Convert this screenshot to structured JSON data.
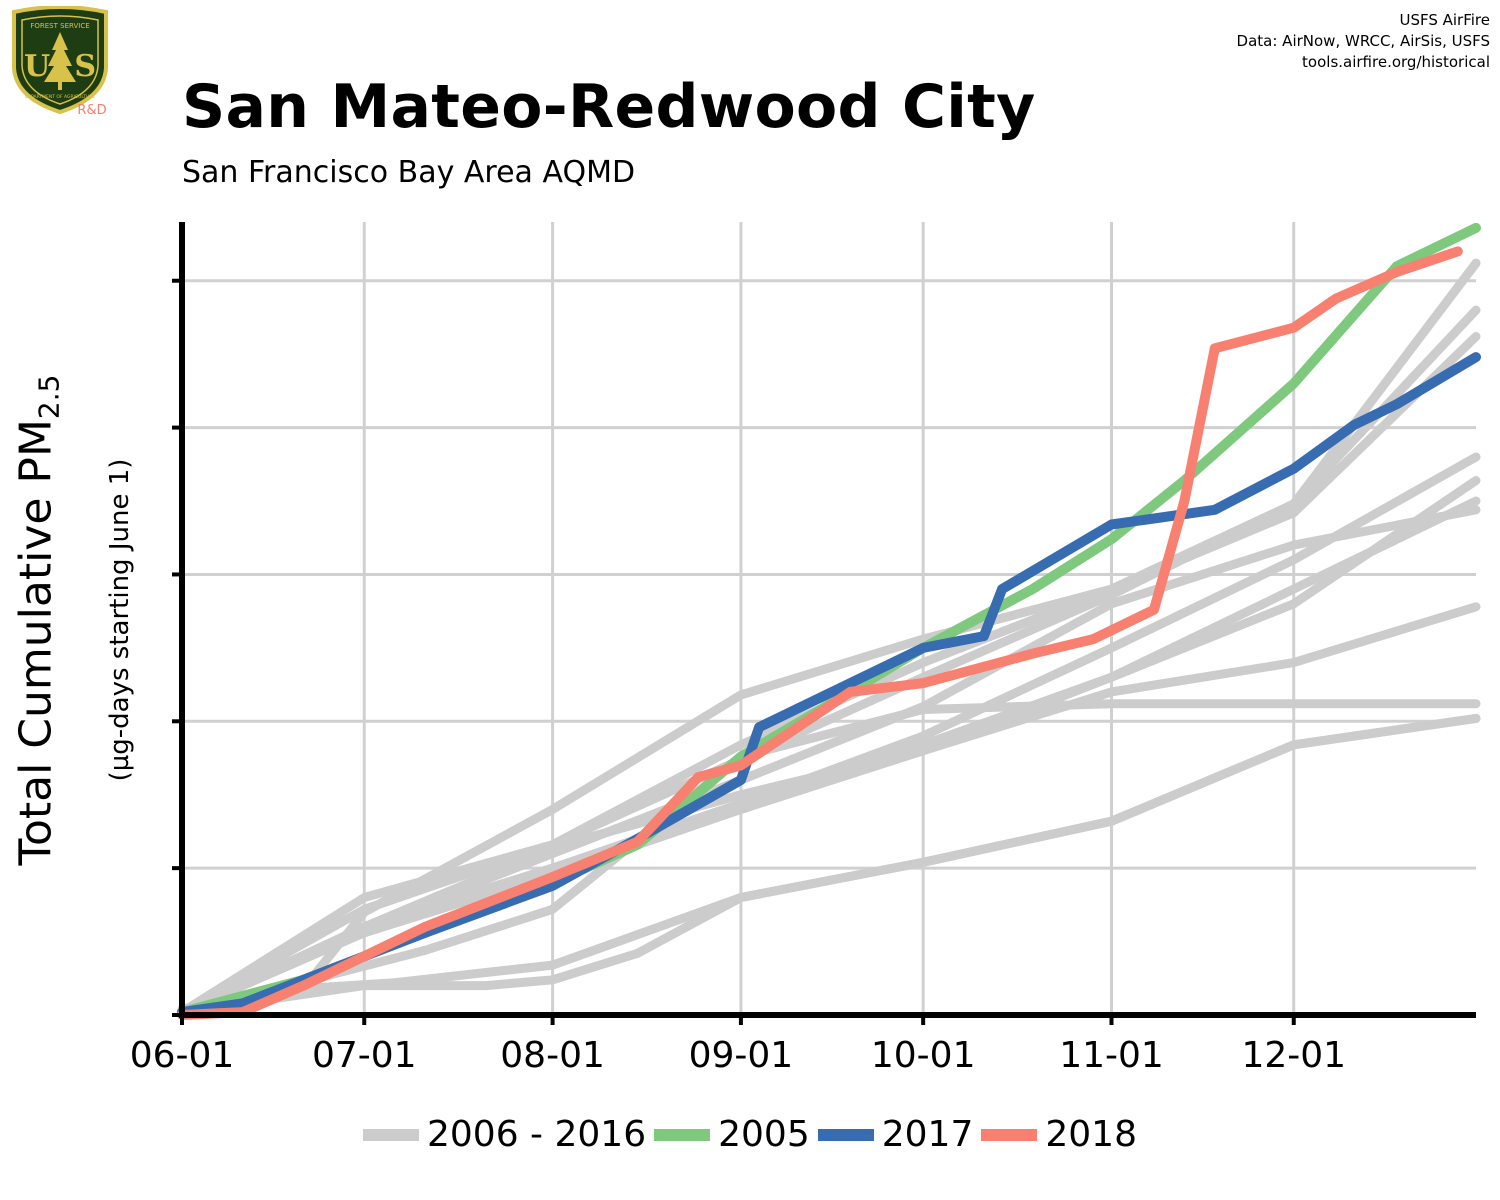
{
  "header": {
    "credits": [
      "USFS AirFire",
      "Data: AirNow, WRCC, AirSis, USFS",
      "tools.airfire.org/historical"
    ],
    "logo": {
      "top_text": "FOREST SERVICE",
      "letters": "U S",
      "bottom_text": "DEPARTMENT OF AGRICULTURE",
      "tag": "R&D"
    }
  },
  "chart_data": {
    "type": "line",
    "title": "San Mateo-Redwood City",
    "subtitle": "San Francisco Bay Area AQMD",
    "ylabel_main": "Total Cumulative PM",
    "ylabel_sub_script": "2.5",
    "ylabel_secondary": "(µg-days starting June 1)",
    "xlabel": "",
    "x_tick_labels": [
      "06-01",
      "07-01",
      "08-01",
      "09-01",
      "10-01",
      "11-01",
      "12-01"
    ],
    "x_tick_days": [
      0,
      30,
      61,
      92,
      122,
      153,
      183
    ],
    "xlim": [
      0,
      213
    ],
    "ylim": [
      0,
      270
    ],
    "y_ticks": [
      0,
      50,
      100,
      150,
      200,
      250
    ],
    "y_tick_labels_shown": false,
    "grid": true,
    "legend_position": "bottom",
    "colors": {
      "history": "#CCCCCC",
      "y2005": "#7FC97F",
      "y2017": "#386CB0",
      "y2018": "#F88070"
    },
    "legend": [
      {
        "label": "2006 - 2016",
        "color": "#CCCCCC"
      },
      {
        "label": "2005",
        "color": "#7FC97F"
      },
      {
        "label": "2017",
        "color": "#386CB0"
      },
      {
        "label": "2018",
        "color": "#F88070"
      }
    ],
    "series": [
      {
        "name": "2006 - 2016",
        "color": "#CCCCCC",
        "points": [
          [
            0,
            1
          ],
          [
            15,
            8
          ],
          [
            25,
            14
          ],
          [
            40,
            22
          ],
          [
            61,
            36
          ],
          [
            92,
            88
          ],
          [
            122,
            104
          ],
          [
            153,
            106
          ],
          [
            183,
            106
          ],
          [
            213,
            106
          ]
        ]
      },
      {
        "name": "2006 - 2016",
        "color": "#CCCCCC",
        "points": [
          [
            0,
            2
          ],
          [
            20,
            9
          ],
          [
            35,
            11
          ],
          [
            61,
            17
          ],
          [
            92,
            40
          ],
          [
            122,
            52
          ],
          [
            153,
            66
          ],
          [
            183,
            92
          ],
          [
            213,
            101
          ]
        ]
      },
      {
        "name": "2006 - 2016",
        "color": "#CCCCCC",
        "points": [
          [
            0,
            1
          ],
          [
            30,
            10
          ],
          [
            50,
            10
          ],
          [
            61,
            12
          ],
          [
            75,
            21
          ],
          [
            92,
            40
          ],
          [
            122,
            52
          ],
          [
            153,
            66
          ],
          [
            183,
            92
          ],
          [
            213,
            101
          ]
        ]
      },
      {
        "name": "2006 - 2016",
        "color": "#CCCCCC",
        "points": [
          [
            0,
            1
          ],
          [
            20,
            9
          ],
          [
            30,
            35
          ],
          [
            61,
            70
          ],
          [
            92,
            109
          ],
          [
            122,
            128
          ],
          [
            153,
            145
          ],
          [
            183,
            171
          ],
          [
            213,
            231
          ]
        ]
      },
      {
        "name": "2006 - 2016",
        "color": "#CCCCCC",
        "points": [
          [
            0,
            1
          ],
          [
            30,
            40
          ],
          [
            61,
            58
          ],
          [
            92,
            92
          ],
          [
            122,
            120
          ],
          [
            153,
            145
          ],
          [
            183,
            174
          ],
          [
            213,
            240
          ]
        ]
      },
      {
        "name": "2006 - 2016",
        "color": "#CCCCCC",
        "points": [
          [
            0,
            1
          ],
          [
            30,
            36
          ],
          [
            61,
            58
          ],
          [
            92,
            87
          ],
          [
            122,
            115
          ],
          [
            153,
            143
          ],
          [
            183,
            174
          ],
          [
            213,
            256
          ]
        ]
      },
      {
        "name": "2006 - 2016",
        "color": "#CCCCCC",
        "points": [
          [
            0,
            1
          ],
          [
            30,
            30
          ],
          [
            61,
            57
          ],
          [
            92,
            75
          ],
          [
            122,
            90
          ],
          [
            153,
            110
          ],
          [
            183,
            120
          ],
          [
            213,
            139
          ]
        ]
      },
      {
        "name": "2006 - 2016",
        "color": "#CCCCCC",
        "points": [
          [
            0,
            1
          ],
          [
            30,
            30
          ],
          [
            61,
            50
          ],
          [
            92,
            70
          ],
          [
            122,
            90
          ],
          [
            153,
            115
          ],
          [
            183,
            145
          ],
          [
            213,
            175
          ]
        ]
      },
      {
        "name": "2006 - 2016",
        "color": "#CCCCCC",
        "points": [
          [
            0,
            1
          ],
          [
            30,
            28
          ],
          [
            61,
            48
          ],
          [
            92,
            70
          ],
          [
            122,
            92
          ],
          [
            153,
            115
          ],
          [
            183,
            140
          ],
          [
            213,
            182
          ]
        ]
      },
      {
        "name": "2006 - 2016",
        "color": "#CCCCCC",
        "points": [
          [
            0,
            1
          ],
          [
            30,
            30
          ],
          [
            61,
            50
          ],
          [
            92,
            72
          ],
          [
            122,
            95
          ],
          [
            153,
            125
          ],
          [
            183,
            155
          ],
          [
            213,
            190
          ]
        ]
      },
      {
        "name": "2006 - 2016",
        "color": "#CCCCCC",
        "points": [
          [
            0,
            1
          ],
          [
            30,
            30
          ],
          [
            61,
            55
          ],
          [
            92,
            80
          ],
          [
            122,
            105
          ],
          [
            153,
            140
          ],
          [
            183,
            160
          ],
          [
            213,
            172
          ]
        ]
      },
      {
        "name": "2005",
        "color": "#7FC97F",
        "points": [
          [
            0,
            1
          ],
          [
            20,
            12
          ],
          [
            40,
            28
          ],
          [
            61,
            45
          ],
          [
            75,
            58
          ],
          [
            92,
            88
          ],
          [
            110,
            110
          ],
          [
            122,
            125
          ],
          [
            140,
            145
          ],
          [
            153,
            162
          ],
          [
            165,
            182
          ],
          [
            183,
            215
          ],
          [
            200,
            255
          ],
          [
            213,
            268
          ]
        ]
      },
      {
        "name": "2017",
        "color": "#386CB0",
        "points": [
          [
            0,
            1
          ],
          [
            10,
            4
          ],
          [
            20,
            12
          ],
          [
            40,
            28
          ],
          [
            61,
            44
          ],
          [
            75,
            60
          ],
          [
            92,
            80
          ],
          [
            95,
            98
          ],
          [
            110,
            113
          ],
          [
            122,
            125
          ],
          [
            132,
            129
          ],
          [
            135,
            145
          ],
          [
            153,
            167
          ],
          [
            170,
            172
          ],
          [
            183,
            186
          ],
          [
            193,
            201
          ],
          [
            200,
            208
          ],
          [
            213,
            224
          ]
        ]
      },
      {
        "name": "2018",
        "color": "#F88070",
        "points": [
          [
            0,
            0
          ],
          [
            10,
            1
          ],
          [
            20,
            10
          ],
          [
            40,
            30
          ],
          [
            61,
            47
          ],
          [
            75,
            59
          ],
          [
            85,
            81
          ],
          [
            92,
            85
          ],
          [
            110,
            110
          ],
          [
            122,
            113
          ],
          [
            140,
            123
          ],
          [
            150,
            128
          ],
          [
            160,
            138
          ],
          [
            165,
            175
          ],
          [
            170,
            227
          ],
          [
            183,
            234
          ],
          [
            190,
            244
          ],
          [
            200,
            253
          ],
          [
            210,
            260
          ]
        ]
      }
    ]
  }
}
